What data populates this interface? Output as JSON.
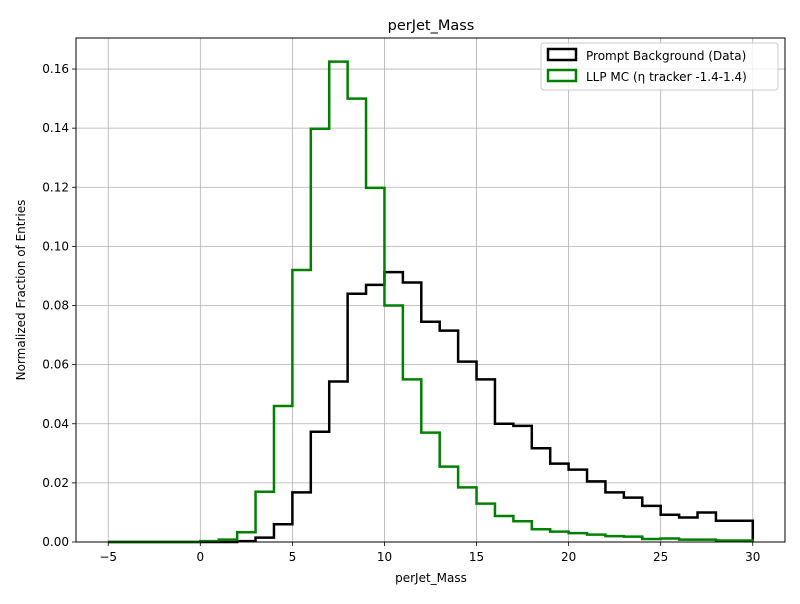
{
  "chart_data": {
    "type": "step-histogram",
    "title": "perJet_Mass",
    "xlabel": "perJet_Mass",
    "ylabel": "Normalized Fraction of Entries",
    "xlim": [
      -6.75,
      31.75
    ],
    "ylim": [
      0,
      0.1705
    ],
    "xticks": [
      -5,
      0,
      5,
      10,
      15,
      20,
      25,
      30
    ],
    "xtick_labels": [
      "−5",
      "0",
      "5",
      "10",
      "15",
      "20",
      "25",
      "30"
    ],
    "yticks": [
      0,
      0.02,
      0.04,
      0.06,
      0.08,
      0.1,
      0.12,
      0.14,
      0.16
    ],
    "ytick_labels": [
      "0.00",
      "0.02",
      "0.04",
      "0.06",
      "0.08",
      "0.10",
      "0.12",
      "0.14",
      "0.16"
    ],
    "grid": true,
    "legend_position": "top-right",
    "bin_edges": [
      -5,
      -4,
      -3,
      -2,
      -1,
      0,
      1,
      2,
      3,
      4,
      5,
      6,
      7,
      8,
      9,
      10,
      11,
      12,
      13,
      14,
      15,
      16,
      17,
      18,
      19,
      20,
      21,
      22,
      23,
      24,
      25,
      26,
      27,
      28,
      29,
      30
    ],
    "series": [
      {
        "name": "Prompt Background (Data)",
        "color": "#000000",
        "values": [
          0,
          0,
          0,
          0,
          0,
          0,
          0,
          0.0003,
          0.0015,
          0.006,
          0.0168,
          0.0373,
          0.0543,
          0.084,
          0.087,
          0.0913,
          0.0878,
          0.0745,
          0.0715,
          0.061,
          0.055,
          0.04,
          0.0393,
          0.0317,
          0.0265,
          0.0245,
          0.0205,
          0.0168,
          0.015,
          0.0122,
          0.0092,
          0.0083,
          0.01,
          0.0072,
          0.0072
        ]
      },
      {
        "name": "LLP MC (η tracker -1.4-1.4)",
        "color": "#008000",
        "values": [
          0,
          0,
          0,
          0,
          0,
          0.0003,
          0.0008,
          0.0033,
          0.017,
          0.046,
          0.092,
          0.1398,
          0.1625,
          0.15,
          0.1198,
          0.08,
          0.055,
          0.037,
          0.0255,
          0.0185,
          0.013,
          0.0088,
          0.007,
          0.0043,
          0.0035,
          0.003,
          0.0025,
          0.002,
          0.0018,
          0.001,
          0.0012,
          0.0008,
          0.0008,
          0.0005,
          0.0005
        ]
      }
    ]
  }
}
